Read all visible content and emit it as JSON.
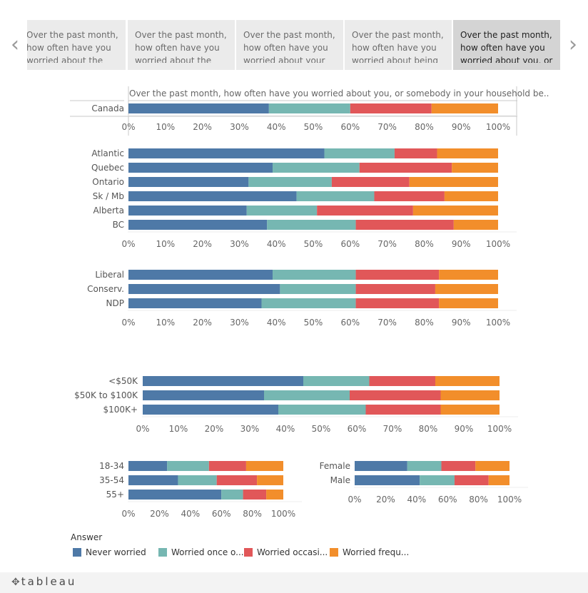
{
  "nav": {
    "prev_icon": "chevron-left-icon",
    "next_icon": "chevron-right-icon"
  },
  "tabs": [
    {
      "label": "Over the past month, how often have you worried about the"
    },
    {
      "label": "Over the past month, how often have you worried about the"
    },
    {
      "label": "Over the past month, how often have you worried about your"
    },
    {
      "label": "Over the past month, how often have you worried about being"
    },
    {
      "label": "Over the past month, how often have you worried about you, or",
      "active": true
    }
  ],
  "colors": {
    "never": "#4e79a7",
    "once": "#76b7b2",
    "occasionally": "#e15759",
    "frequently": "#f28e2b"
  },
  "chart_data": [
    {
      "type": "bar",
      "orientation": "horizontal",
      "stacked": true,
      "title": "Over the past month, how often have you worried about you, or somebody in your household be..",
      "categories": [
        "Canada"
      ],
      "series": [
        {
          "name": "Never worried",
          "values": [
            38
          ]
        },
        {
          "name": "Worried once o...",
          "values": [
            22
          ]
        },
        {
          "name": "Worried occasi...",
          "values": [
            22
          ]
        },
        {
          "name": "Worried frequ...",
          "values": [
            18
          ]
        }
      ],
      "ticks": [
        "0%",
        "10%",
        "20%",
        "30%",
        "40%",
        "50%",
        "60%",
        "70%",
        "80%",
        "90%",
        "100%"
      ],
      "xlim": [
        0,
        100
      ]
    },
    {
      "type": "bar",
      "orientation": "horizontal",
      "stacked": true,
      "categories": [
        "Atlantic",
        "Quebec",
        "Ontario",
        "Sk / Mb",
        "Alberta",
        "BC"
      ],
      "series": [
        {
          "name": "Never worried",
          "values": [
            53,
            39,
            32.5,
            45.5,
            32,
            37.5
          ]
        },
        {
          "name": "Worried once o...",
          "values": [
            19,
            23.5,
            22.5,
            21,
            19,
            24
          ]
        },
        {
          "name": "Worried occasi...",
          "values": [
            11.5,
            25,
            21,
            19,
            26,
            26.5
          ]
        },
        {
          "name": "Worried frequ...",
          "values": [
            16.5,
            12.5,
            24,
            14.5,
            23,
            12
          ]
        }
      ],
      "ticks": [
        "0%",
        "10%",
        "20%",
        "30%",
        "40%",
        "50%",
        "60%",
        "70%",
        "80%",
        "90%",
        "100%"
      ],
      "xlim": [
        0,
        100
      ]
    },
    {
      "type": "bar",
      "orientation": "horizontal",
      "stacked": true,
      "categories": [
        "Liberal",
        "Conserv.",
        "NDP"
      ],
      "series": [
        {
          "name": "Never worried",
          "values": [
            39,
            41,
            36
          ]
        },
        {
          "name": "Worried once o...",
          "values": [
            22.5,
            20.5,
            25.5
          ]
        },
        {
          "name": "Worried occasi...",
          "values": [
            22.5,
            21.5,
            22.5
          ]
        },
        {
          "name": "Worried frequ...",
          "values": [
            16,
            17,
            16
          ]
        }
      ],
      "ticks": [
        "0%",
        "10%",
        "20%",
        "30%",
        "40%",
        "50%",
        "60%",
        "70%",
        "80%",
        "90%",
        "100%"
      ],
      "xlim": [
        0,
        100
      ]
    },
    {
      "type": "bar",
      "orientation": "horizontal",
      "stacked": true,
      "categories": [
        "<$50K",
        "$50K to $100K",
        "$100K+"
      ],
      "series": [
        {
          "name": "Never worried",
          "values": [
            45,
            34,
            38
          ]
        },
        {
          "name": "Worried once o...",
          "values": [
            18.5,
            24,
            24.5
          ]
        },
        {
          "name": "Worried occasi...",
          "values": [
            18.5,
            25.5,
            21
          ]
        },
        {
          "name": "Worried frequ...",
          "values": [
            18,
            16.5,
            16.5
          ]
        }
      ],
      "ticks": [
        "0%",
        "10%",
        "20%",
        "30%",
        "40%",
        "50%",
        "60%",
        "70%",
        "80%",
        "90%",
        "100%"
      ],
      "xlim": [
        0,
        100
      ]
    },
    {
      "type": "bar",
      "orientation": "horizontal",
      "stacked": true,
      "categories": [
        "18-34",
        "35-54",
        "55+"
      ],
      "series": [
        {
          "name": "Never worried",
          "values": [
            25,
            32,
            60
          ]
        },
        {
          "name": "Worried once o...",
          "values": [
            27,
            25,
            14
          ]
        },
        {
          "name": "Worried occasi...",
          "values": [
            24,
            26,
            15
          ]
        },
        {
          "name": "Worried frequ...",
          "values": [
            24,
            17,
            11
          ]
        }
      ],
      "ticks": [
        "0%",
        "20%",
        "40%",
        "60%",
        "80%",
        "100%"
      ],
      "xlim": [
        0,
        100
      ]
    },
    {
      "type": "bar",
      "orientation": "horizontal",
      "stacked": true,
      "categories": [
        "Female",
        "Male"
      ],
      "series": [
        {
          "name": "Never worried",
          "values": [
            34,
            42
          ]
        },
        {
          "name": "Worried once o...",
          "values": [
            22,
            22.5
          ]
        },
        {
          "name": "Worried occasi...",
          "values": [
            22,
            22
          ]
        },
        {
          "name": "Worried frequ...",
          "values": [
            22,
            13.5
          ]
        }
      ],
      "ticks": [
        "0%",
        "20%",
        "40%",
        "60%",
        "80%",
        "100%"
      ],
      "xlim": [
        0,
        100
      ]
    }
  ],
  "legend": {
    "title": "Answer",
    "items": [
      {
        "label": "Never worried",
        "key": "never"
      },
      {
        "label": "Worried once o...",
        "key": "once"
      },
      {
        "label": "Worried occasi...",
        "key": "occasionally"
      },
      {
        "label": "Worried frequ...",
        "key": "frequently"
      }
    ]
  },
  "footer": {
    "logo_text": "tableau",
    "logo_icon": "tableau-plus-icon"
  }
}
